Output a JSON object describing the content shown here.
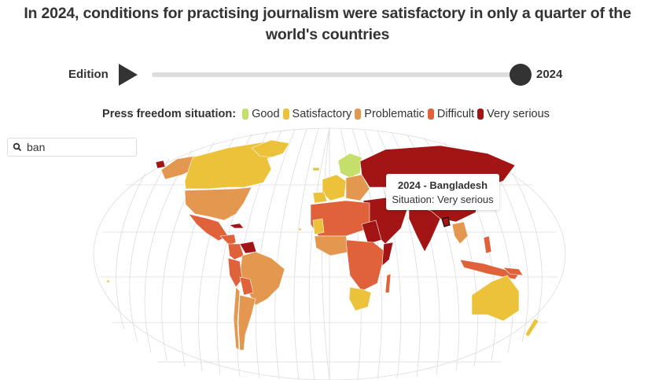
{
  "header": {
    "title": "In 2024, conditions for practising journalism were satisfactory in only a quarter of the world's countries"
  },
  "timeline": {
    "label": "Edition",
    "play_icon": "play-icon",
    "year": "2024",
    "position_fraction": 1.0
  },
  "legend": {
    "label": "Press freedom situation:",
    "items": [
      {
        "label": "Good",
        "color": "#c4e06a"
      },
      {
        "label": "Satisfactory",
        "color": "#ecc23a"
      },
      {
        "label": "Problematic",
        "color": "#e3974f"
      },
      {
        "label": "Difficult",
        "color": "#e0623a"
      },
      {
        "label": "Very serious",
        "color": "#a31515"
      }
    ]
  },
  "search": {
    "icon": "search-icon",
    "value": "ban"
  },
  "tooltip": {
    "title": "2024 - Bangladesh",
    "situation": "Situation: Very serious"
  }
}
